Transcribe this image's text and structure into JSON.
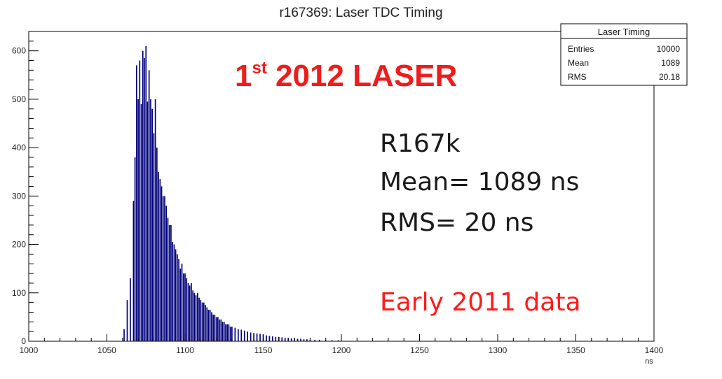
{
  "chart_data": {
    "type": "bar",
    "title": "r167369: Laser TDC Timing",
    "xlabel": "ns",
    "ylabel": "",
    "xlim": [
      1000,
      1400
    ],
    "ylim": [
      0,
      640
    ],
    "x_ticks": [
      1000,
      1050,
      1100,
      1150,
      1200,
      1250,
      1300,
      1350,
      1400
    ],
    "y_ticks": [
      0,
      100,
      200,
      300,
      400,
      500,
      600
    ],
    "bar_color": "#00007a",
    "bin_width": 1,
    "bins_x": [
      1061,
      1063,
      1065,
      1067,
      1068,
      1069,
      1070,
      1071,
      1072,
      1073,
      1074,
      1075,
      1076,
      1077,
      1078,
      1079,
      1080,
      1081,
      1082,
      1083,
      1084,
      1085,
      1086,
      1087,
      1088,
      1089,
      1090,
      1091,
      1092,
      1093,
      1094,
      1095,
      1096,
      1097,
      1098,
      1099,
      1100,
      1101,
      1102,
      1103,
      1104,
      1105,
      1106,
      1107,
      1108,
      1109,
      1110,
      1111,
      1112,
      1113,
      1114,
      1115,
      1116,
      1117,
      1118,
      1119,
      1120,
      1121,
      1122,
      1123,
      1124,
      1125,
      1126,
      1127,
      1128,
      1129,
      1130,
      1132,
      1134,
      1136,
      1138,
      1140,
      1142,
      1144,
      1146,
      1148,
      1150,
      1152,
      1154,
      1156,
      1158,
      1160,
      1162,
      1164,
      1166,
      1168,
      1170,
      1172,
      1174,
      1176,
      1178,
      1180,
      1183,
      1186,
      1190,
      1194,
      1198
    ],
    "bins_y": [
      25,
      85,
      130,
      290,
      380,
      570,
      500,
      580,
      490,
      600,
      585,
      610,
      495,
      560,
      500,
      480,
      430,
      500,
      400,
      350,
      335,
      320,
      300,
      300,
      280,
      255,
      240,
      240,
      205,
      200,
      190,
      180,
      170,
      150,
      160,
      140,
      140,
      130,
      120,
      115,
      120,
      105,
      100,
      95,
      100,
      90,
      85,
      80,
      80,
      75,
      70,
      65,
      65,
      60,
      55,
      55,
      50,
      50,
      45,
      45,
      40,
      40,
      35,
      35,
      35,
      30,
      30,
      28,
      25,
      24,
      22,
      20,
      18,
      17,
      16,
      15,
      14,
      12,
      11,
      10,
      9,
      9,
      8,
      7,
      7,
      6,
      6,
      5,
      5,
      4,
      4,
      3,
      3,
      3,
      2,
      2,
      2
    ],
    "stats_box": {
      "title": "Laser Timing",
      "rows": [
        {
          "label": "Entries",
          "value": "10000"
        },
        {
          "label": "Mean",
          "value": "1089"
        },
        {
          "label": "RMS",
          "value": "20.18"
        }
      ]
    }
  },
  "annotations": {
    "laser_main": "1",
    "laser_sup": "st",
    "laser_rest": " 2012 LASER",
    "run": "R167k",
    "mean": "Mean= 1089 ns",
    "rms": "RMS= 20 ns",
    "early": "Early 2011 data"
  }
}
